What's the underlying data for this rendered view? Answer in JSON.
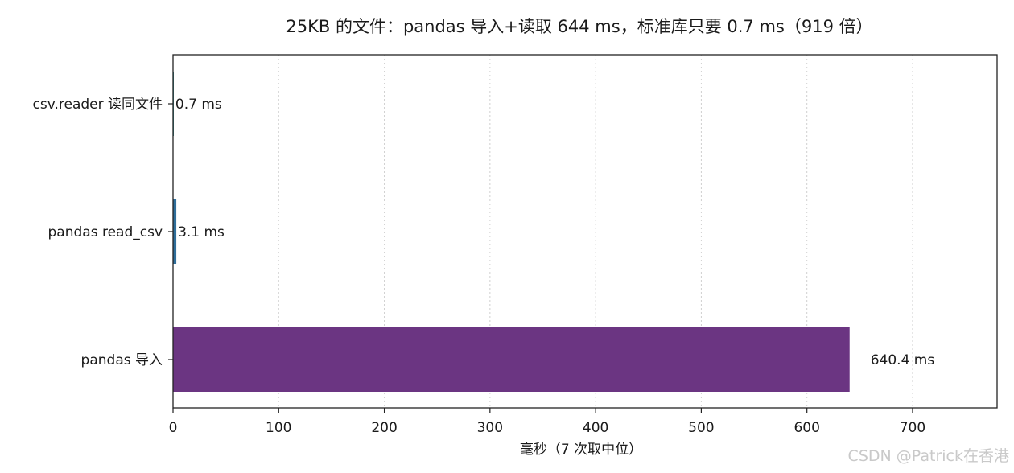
{
  "chart_data": {
    "type": "bar",
    "orientation": "horizontal",
    "title": "25KB 的文件：pandas 导入+读取 644 ms，标准库只要 0.7 ms（919 倍）",
    "xlabel": "毫秒（7 次取中位）",
    "ylabel": "",
    "xlim": [
      0,
      780
    ],
    "x_ticks": [
      0,
      100,
      200,
      300,
      400,
      500,
      600,
      700
    ],
    "grid": "vertical dotted",
    "categories": [
      "csv.reader 读同文件",
      "pandas read_csv",
      "pandas 导入"
    ],
    "values": [
      0.7,
      3.1,
      640.4
    ],
    "data_labels": [
      "0.7 ms",
      "3.1 ms",
      "640.4 ms"
    ],
    "colors": [
      "#3b8a8c",
      "#2f6e9a",
      "#6b3582"
    ]
  },
  "watermark": "CSDN @Patrick在香港"
}
